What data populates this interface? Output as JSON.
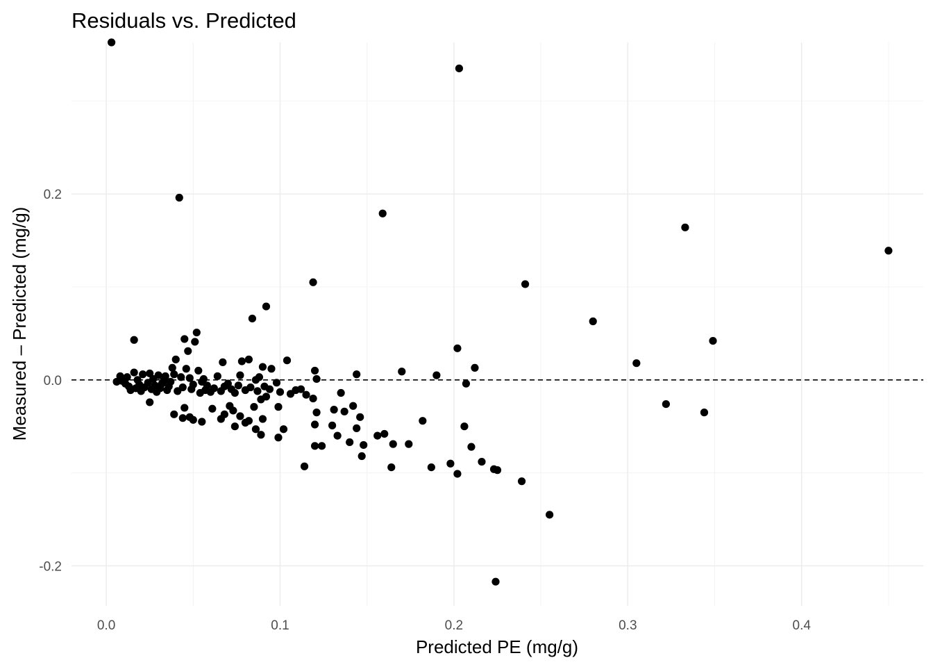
{
  "chart_data": {
    "type": "scatter",
    "title": "Residuals vs. Predicted",
    "xlabel": "Predicted PE (mg/g)",
    "ylabel": "Measured – Predicted (mg/g)",
    "xlim": [
      -0.02,
      0.47
    ],
    "ylim": [
      -0.243,
      0.363
    ],
    "x_ticks": [
      0.0,
      0.1,
      0.2,
      0.3,
      0.4
    ],
    "x_tick_labels": [
      "0.0",
      "0.1",
      "0.2",
      "0.3",
      "0.4"
    ],
    "y_ticks": [
      -0.2,
      0.0,
      0.2
    ],
    "y_tick_labels": [
      "-0.2",
      "0.0",
      "0.2"
    ],
    "grid": true,
    "reference_line": {
      "y": 0,
      "style": "dashed"
    },
    "points": [
      [
        0.003,
        0.363
      ],
      [
        0.203,
        0.335
      ],
      [
        0.042,
        0.196
      ],
      [
        0.159,
        0.179
      ],
      [
        0.333,
        0.164
      ],
      [
        0.45,
        0.139
      ],
      [
        0.119,
        0.105
      ],
      [
        0.241,
        0.103
      ],
      [
        0.092,
        0.079
      ],
      [
        0.084,
        0.066
      ],
      [
        0.28,
        0.063
      ],
      [
        0.052,
        0.051
      ],
      [
        0.045,
        0.044
      ],
      [
        0.016,
        0.043
      ],
      [
        0.051,
        0.041
      ],
      [
        0.349,
        0.042
      ],
      [
        0.202,
        0.034
      ],
      [
        0.047,
        0.031
      ],
      [
        0.04,
        0.022
      ],
      [
        0.067,
        0.019
      ],
      [
        0.078,
        0.02
      ],
      [
        0.082,
        0.022
      ],
      [
        0.104,
        0.021
      ],
      [
        0.305,
        0.018
      ],
      [
        0.038,
        0.013
      ],
      [
        0.046,
        0.012
      ],
      [
        0.053,
        0.01
      ],
      [
        0.09,
        0.014
      ],
      [
        0.095,
        0.012
      ],
      [
        0.12,
        0.01
      ],
      [
        0.212,
        0.013
      ],
      [
        0.17,
        0.009
      ],
      [
        0.19,
        0.005
      ],
      [
        0.144,
        0.006
      ],
      [
        0.008,
        0.004
      ],
      [
        0.012,
        0.003
      ],
      [
        0.016,
        0.008
      ],
      [
        0.021,
        0.006
      ],
      [
        0.025,
        0.007
      ],
      [
        0.03,
        0.005
      ],
      [
        0.034,
        0.004
      ],
      [
        0.039,
        0.006
      ],
      [
        0.043,
        0.003
      ],
      [
        0.048,
        0.002
      ],
      [
        0.056,
        0.001
      ],
      [
        0.064,
        0.004
      ],
      [
        0.077,
        0.005
      ],
      [
        0.088,
        0.003
      ],
      [
        0.121,
        0.001
      ],
      [
        0.018,
        0.0
      ],
      [
        0.027,
        0.001
      ],
      [
        0.033,
        -0.001
      ],
      [
        0.055,
        -0.002
      ],
      [
        0.07,
        -0.004
      ],
      [
        0.086,
        0.0
      ],
      [
        0.098,
        -0.003
      ],
      [
        0.207,
        -0.004
      ],
      [
        0.006,
        -0.002
      ],
      [
        0.009,
        -0.001
      ],
      [
        0.011,
        -0.004
      ],
      [
        0.013,
        -0.007
      ],
      [
        0.014,
        -0.011
      ],
      [
        0.017,
        -0.009
      ],
      [
        0.019,
        -0.005
      ],
      [
        0.02,
        -0.012
      ],
      [
        0.022,
        -0.008
      ],
      [
        0.024,
        -0.003
      ],
      [
        0.026,
        -0.01
      ],
      [
        0.028,
        -0.006
      ],
      [
        0.029,
        -0.013
      ],
      [
        0.031,
        -0.009
      ],
      [
        0.032,
        -0.004
      ],
      [
        0.035,
        -0.011
      ],
      [
        0.036,
        -0.007
      ],
      [
        0.037,
        -0.002
      ],
      [
        0.041,
        -0.012
      ],
      [
        0.044,
        -0.008
      ],
      [
        0.049,
        -0.01
      ],
      [
        0.05,
        -0.005
      ],
      [
        0.054,
        -0.014
      ],
      [
        0.057,
        -0.011
      ],
      [
        0.058,
        -0.006
      ],
      [
        0.06,
        -0.013
      ],
      [
        0.062,
        -0.009
      ],
      [
        0.066,
        -0.012
      ],
      [
        0.068,
        -0.007
      ],
      [
        0.072,
        -0.01
      ],
      [
        0.074,
        -0.014
      ],
      [
        0.076,
        -0.006
      ],
      [
        0.08,
        -0.011
      ],
      [
        0.083,
        -0.008
      ],
      [
        0.087,
        -0.012
      ],
      [
        0.091,
        -0.007
      ],
      [
        0.094,
        -0.01
      ],
      [
        0.1,
        -0.013
      ],
      [
        0.106,
        -0.015
      ],
      [
        0.109,
        -0.011
      ],
      [
        0.112,
        -0.01
      ],
      [
        0.115,
        -0.016
      ],
      [
        0.025,
        -0.024
      ],
      [
        0.045,
        -0.03
      ],
      [
        0.061,
        -0.031
      ],
      [
        0.071,
        -0.028
      ],
      [
        0.073,
        -0.033
      ],
      [
        0.085,
        -0.029
      ],
      [
        0.089,
        -0.021
      ],
      [
        0.092,
        -0.018
      ],
      [
        0.099,
        -0.029
      ],
      [
        0.119,
        -0.02
      ],
      [
        0.039,
        -0.037
      ],
      [
        0.044,
        -0.041
      ],
      [
        0.048,
        -0.04
      ],
      [
        0.05,
        -0.043
      ],
      [
        0.055,
        -0.045
      ],
      [
        0.066,
        -0.042
      ],
      [
        0.068,
        -0.037
      ],
      [
        0.074,
        -0.05
      ],
      [
        0.077,
        -0.039
      ],
      [
        0.08,
        -0.046
      ],
      [
        0.082,
        -0.044
      ],
      [
        0.086,
        -0.053
      ],
      [
        0.089,
        -0.059
      ],
      [
        0.09,
        -0.042
      ],
      [
        0.099,
        -0.062
      ],
      [
        0.102,
        -0.053
      ],
      [
        0.12,
        -0.048
      ],
      [
        0.12,
        -0.071
      ],
      [
        0.121,
        -0.035
      ],
      [
        0.124,
        -0.071
      ],
      [
        0.13,
        -0.049
      ],
      [
        0.131,
        -0.032
      ],
      [
        0.133,
        -0.06
      ],
      [
        0.135,
        -0.014
      ],
      [
        0.137,
        -0.034
      ],
      [
        0.14,
        -0.067
      ],
      [
        0.142,
        -0.028
      ],
      [
        0.144,
        -0.052
      ],
      [
        0.146,
        -0.04
      ],
      [
        0.147,
        -0.082
      ],
      [
        0.148,
        -0.07
      ],
      [
        0.156,
        -0.06
      ],
      [
        0.16,
        -0.058
      ],
      [
        0.164,
        -0.094
      ],
      [
        0.165,
        -0.069
      ],
      [
        0.174,
        -0.069
      ],
      [
        0.182,
        -0.044
      ],
      [
        0.187,
        -0.094
      ],
      [
        0.198,
        -0.09
      ],
      [
        0.202,
        -0.101
      ],
      [
        0.206,
        -0.05
      ],
      [
        0.21,
        -0.072
      ],
      [
        0.216,
        -0.088
      ],
      [
        0.223,
        -0.096
      ],
      [
        0.225,
        -0.097
      ],
      [
        0.114,
        -0.093
      ],
      [
        0.239,
        -0.109
      ],
      [
        0.322,
        -0.026
      ],
      [
        0.344,
        -0.035
      ],
      [
        0.255,
        -0.145
      ],
      [
        0.224,
        -0.217
      ]
    ]
  }
}
